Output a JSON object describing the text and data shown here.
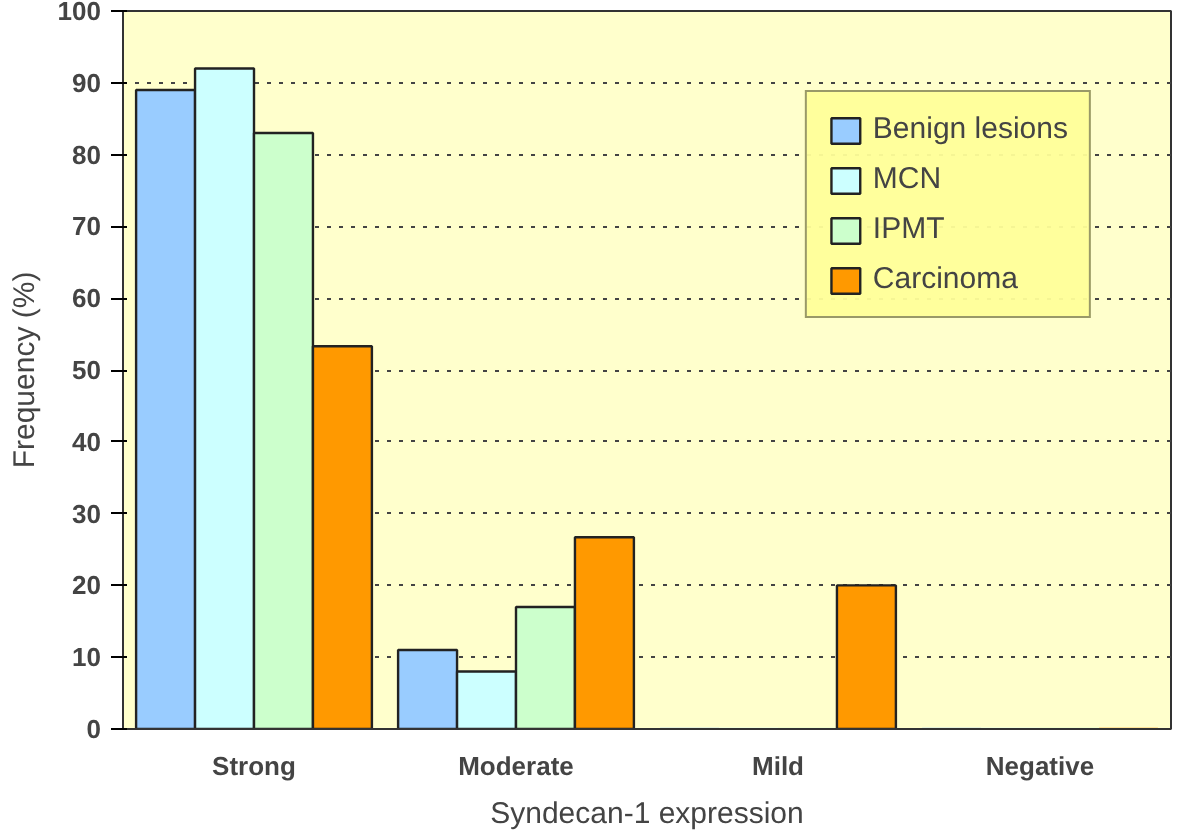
{
  "chart_data": {
    "type": "bar",
    "xlabel": "Syndecan-1 expression",
    "ylabel": "Frequency (%)",
    "categories": [
      "Strong",
      "Moderate",
      "Mild",
      "Negative"
    ],
    "series": [
      {
        "name": "Benign lesions",
        "color": "#99ccff",
        "values": [
          89,
          11,
          0,
          0
        ]
      },
      {
        "name": "MCN",
        "color": "#ccffff",
        "values": [
          92,
          8,
          0,
          0
        ]
      },
      {
        "name": "IPMT",
        "color": "#ccffcc",
        "values": [
          83,
          17,
          0,
          0
        ]
      },
      {
        "name": "Carcinoma",
        "color": "#ff9900",
        "values": [
          53.3,
          26.7,
          20,
          0
        ]
      }
    ],
    "ylim": [
      0,
      100
    ],
    "yticks": [
      0,
      10,
      20,
      30,
      40,
      50,
      60,
      70,
      80,
      90,
      100
    ],
    "grid": "y",
    "legend": "top right"
  }
}
